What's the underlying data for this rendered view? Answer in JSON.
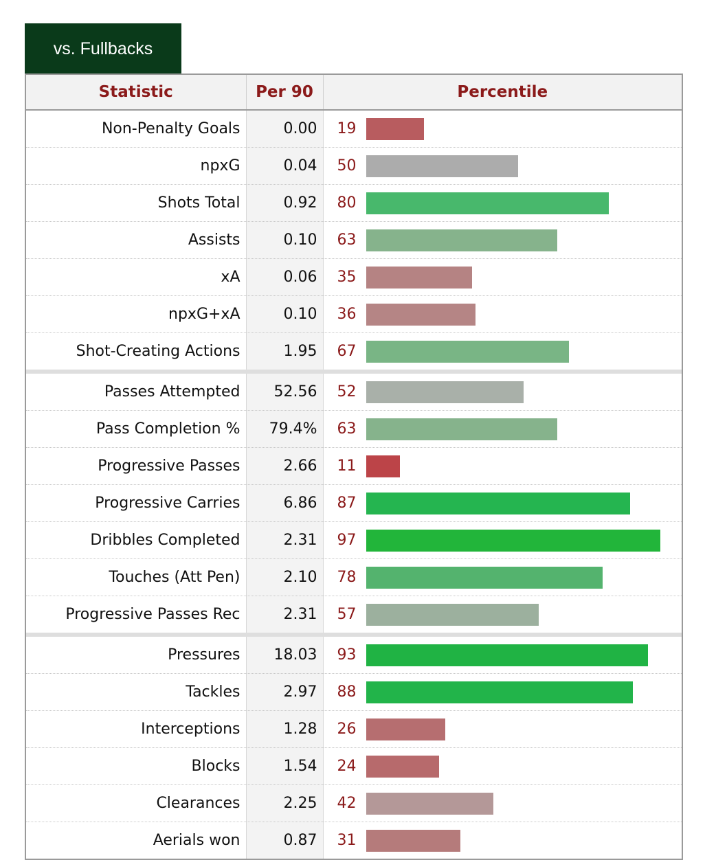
{
  "tab": {
    "label": "vs. Fullbacks"
  },
  "headers": {
    "statistic": "Statistic",
    "per90": "Per 90",
    "percentile": "Percentile"
  },
  "groups": [
    [
      {
        "stat": "Non-Penalty Goals",
        "per90": "0.00",
        "percentile": 19,
        "color": "#b85c5f"
      },
      {
        "stat": "npxG",
        "per90": "0.04",
        "percentile": 50,
        "color": "#acacac"
      },
      {
        "stat": "Shots Total",
        "per90": "0.92",
        "percentile": 80,
        "color": "#48b86c"
      },
      {
        "stat": "Assists",
        "per90": "0.10",
        "percentile": 63,
        "color": "#86b38c"
      },
      {
        "stat": "xA",
        "per90": "0.06",
        "percentile": 35,
        "color": "#b58383"
      },
      {
        "stat": "npxG+xA",
        "per90": "0.10",
        "percentile": 36,
        "color": "#b58585"
      },
      {
        "stat": "Shot-Creating Actions",
        "per90": "1.95",
        "percentile": 67,
        "color": "#79b585"
      }
    ],
    [
      {
        "stat": "Passes Attempted",
        "per90": "52.56",
        "percentile": 52,
        "color": "#a9b0a9"
      },
      {
        "stat": "Pass Completion %",
        "per90": "79.4%",
        "percentile": 63,
        "color": "#86b38c"
      },
      {
        "stat": "Progressive Passes",
        "per90": "2.66",
        "percentile": 11,
        "color": "#bc4448"
      },
      {
        "stat": "Progressive Carries",
        "per90": "6.86",
        "percentile": 87,
        "color": "#25b550"
      },
      {
        "stat": "Dribbles Completed",
        "per90": "2.31",
        "percentile": 97,
        "color": "#22b53a"
      },
      {
        "stat": "Touches (Att Pen)",
        "per90": "2.10",
        "percentile": 78,
        "color": "#54b36e"
      },
      {
        "stat": "Progressive Passes Rec",
        "per90": "2.31",
        "percentile": 57,
        "color": "#9cb09e"
      }
    ],
    [
      {
        "stat": "Pressures",
        "per90": "18.03",
        "percentile": 93,
        "color": "#20b344"
      },
      {
        "stat": "Tackles",
        "per90": "2.97",
        "percentile": 88,
        "color": "#22b44a"
      },
      {
        "stat": "Interceptions",
        "per90": "1.28",
        "percentile": 26,
        "color": "#b66e70"
      },
      {
        "stat": "Blocks",
        "per90": "1.54",
        "percentile": 24,
        "color": "#b76a6c"
      },
      {
        "stat": "Clearances",
        "per90": "2.25",
        "percentile": 42,
        "color": "#b49898"
      },
      {
        "stat": "Aerials won",
        "per90": "0.87",
        "percentile": 31,
        "color": "#b57b7b"
      }
    ]
  ]
}
